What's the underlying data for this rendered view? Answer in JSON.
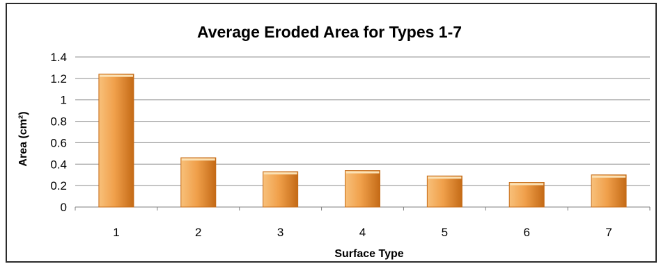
{
  "chart_data": {
    "type": "bar",
    "title": "Average Eroded Area for Types 1-7",
    "xlabel": "Surface Type",
    "ylabel": "Area (cm²)",
    "categories": [
      "1",
      "2",
      "3",
      "4",
      "5",
      "6",
      "7"
    ],
    "series": [
      {
        "values": [
          1.24,
          0.46,
          0.33,
          0.34,
          0.29,
          0.23,
          0.3
        ]
      }
    ],
    "ylim": [
      0,
      1.4
    ],
    "yticks": [
      0,
      0.2,
      0.4,
      0.6,
      0.8,
      1,
      1.2,
      1.4
    ],
    "grid": true,
    "legend": "none",
    "colors": {
      "bar_light": "#F8C07A",
      "bar_mid": "#F0A04B",
      "bar_dark": "#C46A16",
      "bar_top": "#FBE2B6",
      "gridline": "#8c8c8c",
      "axis": "#7f7f7f",
      "frame": "#2b2b2b"
    }
  }
}
